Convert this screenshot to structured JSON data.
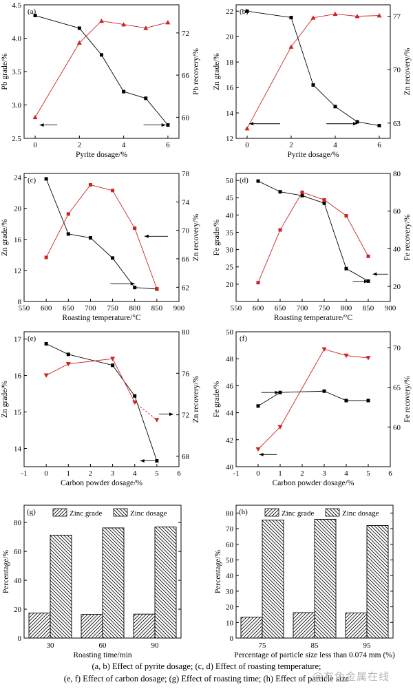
{
  "colors": {
    "black_series": "#000000",
    "red_series": "#cc2222"
  },
  "caption": {
    "line1": "(a, b) Effect of pyrite dosage; (c, d) Effect of roasting temperature;",
    "line2": "(e, f) Effect of carbon dosage; (g) Effect of roasting time; (h) Effect of particle size"
  },
  "watermark": "@有色金属在线",
  "chart_data": [
    {
      "panel": "(a)",
      "type": "line",
      "xlabel": "Pyrite dosage/%",
      "ylabel": "Pb grade/%",
      "y2label": "Pb recovery/%",
      "xlim": [
        -0.5,
        6.5
      ],
      "xticks": [
        0,
        2,
        4,
        6
      ],
      "ylim": [
        2.5,
        4.5
      ],
      "yticks": [
        2.5,
        3.0,
        3.5,
        4.0,
        4.5
      ],
      "ytick_decimals": 1,
      "y2lim": [
        57,
        76
      ],
      "y2ticks": [
        60,
        66,
        72
      ],
      "series": [
        {
          "marker": "square",
          "axis": "left",
          "color": "#000000",
          "x": [
            0,
            2,
            3,
            4,
            5,
            6
          ],
          "values": [
            4.34,
            4.15,
            3.75,
            3.2,
            3.1,
            2.7
          ]
        },
        {
          "marker": "triangle-up",
          "axis": "right",
          "color": "#cc2222",
          "x": [
            0,
            2,
            3,
            4,
            5,
            6
          ],
          "values": [
            60.0,
            70.6,
            73.7,
            73.2,
            72.7,
            73.5
          ]
        }
      ],
      "arrows": [
        {
          "y": 2.7,
          "x1": 0.2,
          "x2": 1.0,
          "point": "left"
        },
        {
          "y": 2.7,
          "x1": 4.9,
          "x2": 5.9,
          "point": "right"
        }
      ]
    },
    {
      "panel": "(b)",
      "type": "line",
      "xlabel": "Pyrite dosage/%",
      "ylabel": "Zn grade/%",
      "y2label": "Zn recovery/%",
      "xlim": [
        -0.5,
        6.5
      ],
      "xticks": [
        0,
        2,
        4,
        6
      ],
      "ylim": [
        12,
        22.5
      ],
      "yticks": [
        12,
        14,
        16,
        18,
        20,
        22
      ],
      "ytick_decimals": 0,
      "y2lim": [
        61,
        78.5
      ],
      "y2ticks": [
        63,
        70,
        77
      ],
      "series": [
        {
          "marker": "square",
          "axis": "left",
          "color": "#000000",
          "x": [
            0,
            2,
            3,
            4,
            5,
            6
          ],
          "values": [
            22.0,
            21.5,
            16.2,
            14.5,
            13.3,
            13.0
          ]
        },
        {
          "marker": "triangle-up",
          "axis": "right",
          "color": "#cc2222",
          "x": [
            0,
            2,
            3,
            4,
            5,
            6
          ],
          "values": [
            62.3,
            73.0,
            76.8,
            77.3,
            77.0,
            77.1
          ]
        }
      ],
      "arrows": [
        {
          "y": 13.15,
          "x1": 0.1,
          "x2": 1.5,
          "point": "left"
        },
        {
          "y": 13.15,
          "x1": 3.6,
          "x2": 5.0,
          "point": "right"
        }
      ]
    },
    {
      "panel": "(c)",
      "type": "line",
      "xlabel": "Roasting temperature/°C",
      "ylabel": "Zn grade/%",
      "y2label": "Zn recovery/%",
      "xlim": [
        550,
        900
      ],
      "xticks": [
        550,
        600,
        650,
        700,
        750,
        800,
        850,
        900
      ],
      "ylim": [
        8,
        24.5
      ],
      "yticks": [
        8,
        12,
        16,
        20,
        24
      ],
      "ytick_decimals": 0,
      "y2lim": [
        60,
        78
      ],
      "y2ticks": [
        62,
        66,
        70,
        74,
        78
      ],
      "series": [
        {
          "marker": "square",
          "axis": "left",
          "color": "#000000",
          "x": [
            600,
            650,
            700,
            750,
            800,
            850
          ],
          "values": [
            23.8,
            16.7,
            16.2,
            13.6,
            9.8,
            9.6
          ]
        },
        {
          "marker": "square",
          "axis": "right",
          "color": "#cc2222",
          "x": [
            600,
            650,
            700,
            750,
            800,
            850
          ],
          "values": [
            66.2,
            72.3,
            76.4,
            75.6,
            70.3,
            61.8
          ]
        }
      ],
      "arrows": [
        {
          "y": 10.3,
          "x1": 745,
          "x2": 800,
          "point": "right"
        },
        {
          "y": 16.4,
          "x1": 822,
          "x2": 875,
          "point": "left"
        }
      ]
    },
    {
      "panel": "(d)",
      "type": "line",
      "xlabel": "Roasting temperature/°C",
      "ylabel": "Fe grade/%",
      "y2label": "Fe recovery/%",
      "xlim": [
        550,
        900
      ],
      "xticks": [
        550,
        600,
        650,
        700,
        750,
        800,
        850,
        900
      ],
      "ylim": [
        15,
        52
      ],
      "yticks": [
        20,
        25,
        30,
        35,
        40,
        45,
        50
      ],
      "ytick_decimals": 0,
      "y2lim": [
        12,
        80
      ],
      "y2ticks": [
        20,
        40,
        60,
        80
      ],
      "series": [
        {
          "marker": "square",
          "axis": "left",
          "color": "#000000",
          "x": [
            600,
            650,
            700,
            750,
            800,
            850
          ],
          "values": [
            49.8,
            46.7,
            45.6,
            43.4,
            24.5,
            20.9
          ]
        },
        {
          "marker": "square",
          "axis": "right",
          "color": "#cc2222",
          "x": [
            600,
            650,
            700,
            750,
            800,
            850
          ],
          "values": [
            22.0,
            50.0,
            70.0,
            66.0,
            57.5,
            36.0
          ]
        }
      ],
      "arrows": [
        {
          "y": 20.8,
          "x1": 815,
          "x2": 850,
          "point": "right"
        },
        {
          "y": 22.9,
          "x1": 860,
          "x2": 895,
          "point": "left"
        }
      ]
    },
    {
      "panel": "(e)",
      "type": "line",
      "xlabel": "Carbon powder dosage/%",
      "ylabel": "Zn grade/%",
      "y2label": "Zn recovery/%",
      "xlim": [
        -1,
        6
      ],
      "xticks": [
        -1,
        0,
        1,
        2,
        3,
        4,
        5,
        6
      ],
      "ylim": [
        13.5,
        17.2
      ],
      "yticks": [
        14,
        15,
        16,
        17
      ],
      "ytick_decimals": 0,
      "y2lim": [
        67,
        80
      ],
      "y2ticks": [
        68,
        72,
        76,
        80
      ],
      "series": [
        {
          "marker": "square",
          "axis": "left",
          "color": "#000000",
          "x": [
            0,
            1,
            3,
            4,
            5
          ],
          "values": [
            16.87,
            16.58,
            16.28,
            15.44,
            13.66
          ]
        },
        {
          "marker": "triangle-down",
          "axis": "right",
          "color": "#cc2222",
          "dashed_last": true,
          "x": [
            0,
            1,
            3,
            4,
            5
          ],
          "values": [
            75.8,
            76.9,
            77.4,
            73.2,
            71.5
          ]
        }
      ],
      "arrows": [
        {
          "y": 13.66,
          "x1": 4.25,
          "x2": 4.9,
          "point": "left"
        },
        {
          "y": 14.94,
          "x1": 5.1,
          "x2": 5.75,
          "point": "right"
        }
      ]
    },
    {
      "panel": "(f)",
      "type": "line",
      "xlabel": "Carbon powder dosage/%",
      "ylabel": "Fe grade/%",
      "y2label": "Fe recovery/%",
      "xlim": [
        -1,
        6
      ],
      "xticks": [
        -1,
        0,
        1,
        2,
        3,
        4,
        5,
        6
      ],
      "ylim": [
        40,
        50
      ],
      "yticks": [
        40,
        42,
        44,
        46,
        48,
        50
      ],
      "ytick_decimals": 0,
      "y2lim": [
        55,
        72
      ],
      "y2ticks": [
        60,
        65,
        70
      ],
      "series": [
        {
          "marker": "square",
          "axis": "left",
          "color": "#000000",
          "x": [
            0,
            1,
            3,
            4,
            5
          ],
          "values": [
            44.5,
            45.5,
            45.6,
            44.9,
            44.9
          ]
        },
        {
          "marker": "triangle-down",
          "axis": "right",
          "color": "#cc2222",
          "x": [
            0,
            1,
            3,
            4,
            5
          ],
          "values": [
            57.2,
            60.0,
            69.8,
            69.0,
            68.7
          ]
        }
      ],
      "arrows": [
        {
          "y": 40.9,
          "x1": 0.05,
          "x2": 0.85,
          "point": "left"
        },
        {
          "y": 45.5,
          "x1": 0.15,
          "x2": 0.95,
          "point": "right"
        }
      ]
    },
    {
      "panel": "(g)",
      "type": "bar",
      "xlabel": "Roasting time/min",
      "ylabel": "Percentage/%",
      "categories": [
        "30",
        "60",
        "90"
      ],
      "ylim": [
        0,
        92
      ],
      "yticks": [
        0,
        20,
        40,
        60,
        80
      ],
      "legend": [
        "Zinc grade",
        "Zinc dosage"
      ],
      "series": [
        {
          "name": "Zinc grade",
          "values": [
            17.3,
            16.4,
            16.6
          ]
        },
        {
          "name": "Zinc dosage",
          "values": [
            71.3,
            76.3,
            76.9
          ]
        }
      ]
    },
    {
      "panel": "(h)",
      "type": "bar",
      "xlabel": "Percentage of particle size less than 0.074 mm (%)",
      "ylabel": "Percentage/%",
      "categories": [
        "75",
        "85",
        "95"
      ],
      "ylim": [
        0,
        85
      ],
      "yticks": [
        0,
        10,
        20,
        30,
        40,
        50,
        60,
        70,
        80
      ],
      "legend": [
        "Zinc grade",
        "Zinc dosage"
      ],
      "series": [
        {
          "name": "Zinc grade",
          "values": [
            13.4,
            16.3,
            16.1
          ]
        },
        {
          "name": "Zinc dosage",
          "values": [
            75.5,
            76.0,
            72.0
          ]
        }
      ]
    }
  ]
}
